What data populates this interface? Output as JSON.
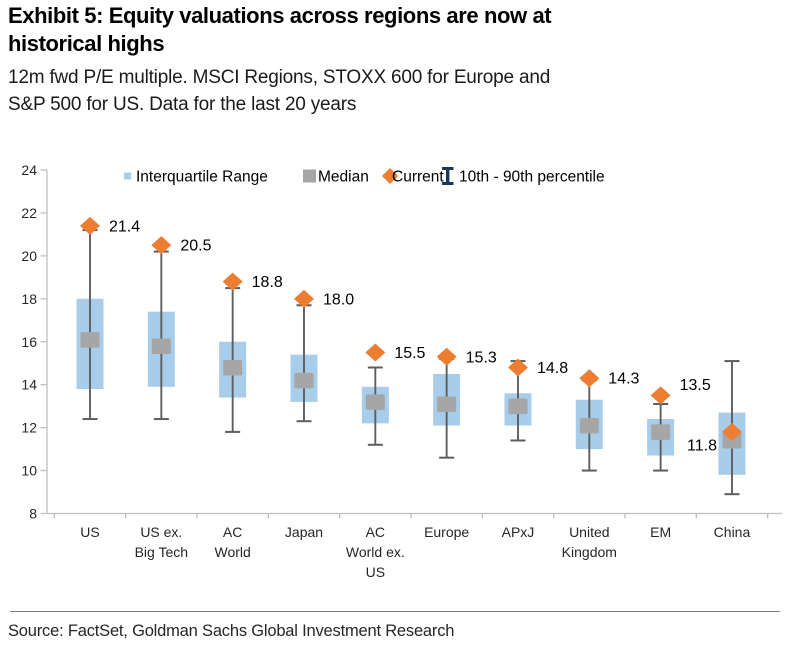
{
  "header": {
    "title": "Exhibit 5: Equity valuations across regions are now at\nhistorical highs",
    "subtitle": "12m fwd P/E multiple. MSCI Regions, STOXX 600 for Europe and\nS&P 500 for US. Data for the last 20 years"
  },
  "footer": {
    "source": "Source: FactSet, Goldman Sachs Global Investment Research"
  },
  "chart_data": {
    "type": "boxplot",
    "title": "Exhibit 5: Equity valuations across regions are now at historical highs",
    "subtitle": "12m fwd P/E multiple. MSCI Regions, STOXX 600 for Europe and S&P 500 for US. Data for the last 20 years",
    "ylim": [
      8,
      24
    ],
    "ytick_step": 2,
    "yticks": [
      8,
      10,
      12,
      14,
      16,
      18,
      20,
      22,
      24
    ],
    "grid": false,
    "legend_position": "top",
    "legend": [
      {
        "label": "Interquartile Range",
        "marker": "small-square",
        "color": "#A7CDEB"
      },
      {
        "label": "Median",
        "marker": "square",
        "color": "#A6A6A6"
      },
      {
        "label": "Current",
        "marker": "diamond",
        "color": "#ED7D31"
      },
      {
        "label": "10th - 90th percentile",
        "marker": "ibeam",
        "color": "#17375E"
      }
    ],
    "categories": [
      "US",
      "US ex.\nBig Tech",
      "AC\nWorld",
      "Japan",
      "AC\nWorld ex.\nUS",
      "Europe",
      "APxJ",
      "United\nKingdom",
      "EM",
      "China"
    ],
    "series": [
      {
        "name": "10th percentile",
        "values": [
          12.4,
          12.4,
          11.8,
          12.3,
          11.2,
          10.6,
          11.4,
          10.0,
          10.0,
          8.9
        ]
      },
      {
        "name": "25th percentile",
        "values": [
          13.8,
          13.9,
          13.4,
          13.2,
          12.2,
          12.1,
          12.1,
          11.0,
          10.7,
          9.8
        ]
      },
      {
        "name": "Median",
        "values": [
          16.1,
          15.8,
          14.8,
          14.2,
          13.2,
          13.1,
          13.0,
          12.1,
          11.8,
          11.4
        ]
      },
      {
        "name": "75th percentile",
        "values": [
          18.0,
          17.4,
          16.0,
          15.4,
          13.9,
          14.5,
          13.6,
          13.3,
          12.4,
          12.7
        ]
      },
      {
        "name": "90th percentile",
        "values": [
          21.2,
          20.2,
          18.5,
          17.7,
          14.8,
          15.2,
          15.1,
          14.2,
          13.1,
          15.1
        ]
      },
      {
        "name": "Current",
        "values": [
          21.4,
          20.5,
          18.8,
          18.0,
          15.5,
          15.3,
          14.8,
          14.3,
          13.5,
          11.8
        ]
      }
    ],
    "current_labels": [
      "21.4",
      "20.5",
      "18.8",
      "18.0",
      "15.5",
      "15.3",
      "14.8",
      "14.3",
      "13.5",
      "11.8"
    ],
    "label_side": [
      "right",
      "right",
      "right",
      "right",
      "right",
      "right",
      "right",
      "right",
      "right",
      "left"
    ],
    "label_dy": [
      0,
      0,
      0,
      0,
      0,
      0,
      0,
      0,
      -11,
      13
    ],
    "colors": {
      "iqr_box": "#A7CDEB",
      "median": "#A6A6A6",
      "current": "#ED7D31",
      "whisker": "#5E5E5E",
      "axis": "#BFBFBF",
      "tick_label": "#262626",
      "data_label": "#000000",
      "ibeam": "#17375E"
    }
  }
}
